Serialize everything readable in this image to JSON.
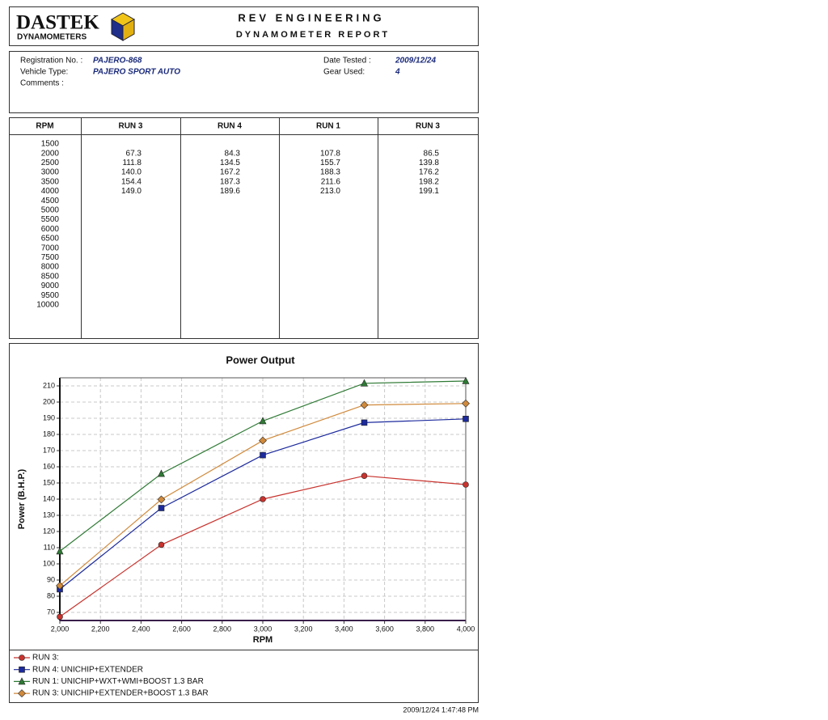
{
  "header": {
    "logo": "DASTEK",
    "logo_sub": "DYNAMOMETERS",
    "title": "REV ENGINEERING",
    "subtitle": "DYNAMOMETER REPORT"
  },
  "info": {
    "left": [
      {
        "label": "Registration No. :",
        "value": "PAJERO-868"
      },
      {
        "label": "Vehicle Type:",
        "value": "PAJERO SPORT AUTO"
      },
      {
        "label": "Comments :"
      }
    ],
    "right": [
      {
        "label": "Date Tested :",
        "value": "2009/12/24"
      },
      {
        "label": "Gear Used:",
        "value": "4"
      }
    ]
  },
  "table": {
    "columns": [
      "RPM",
      "RUN 3",
      "RUN 4",
      "RUN 1",
      "RUN 3"
    ],
    "rows": [
      [
        "1500"
      ],
      [
        "2000",
        "67.3",
        "84.3",
        "107.8",
        "86.5"
      ],
      [
        "2500",
        "111.8",
        "134.5",
        "155.7",
        "139.8"
      ],
      [
        "3000",
        "140.0",
        "167.2",
        "188.3",
        "176.2"
      ],
      [
        "3500",
        "154.4",
        "187.3",
        "211.6",
        "198.2"
      ],
      [
        "4000",
        "149.0",
        "189.6",
        "213.0",
        "199.1"
      ],
      [
        "4500"
      ],
      [
        "5000"
      ],
      [
        "5500"
      ],
      [
        "6000"
      ],
      [
        "6500"
      ],
      [
        "7000"
      ],
      [
        "7500"
      ],
      [
        "8000"
      ],
      [
        "8500"
      ],
      [
        "9000"
      ],
      [
        "9500"
      ],
      [
        "10000"
      ]
    ]
  },
  "chart_data": {
    "type": "line",
    "title": "Power Output",
    "x_label": "RPM",
    "y_label": "Power (B.H.P.)",
    "x": [
      2000,
      2500,
      3000,
      3500,
      4000
    ],
    "xlim": [
      2000,
      4000
    ],
    "xticks": [
      {
        "value": 2000,
        "label": "2,000"
      },
      {
        "value": 2200,
        "label": "2,200"
      },
      {
        "value": 2400,
        "label": "2,400"
      },
      {
        "value": 2600,
        "label": "2,600"
      },
      {
        "value": 2800,
        "label": "2,800"
      },
      {
        "value": 3000,
        "label": "3,000"
      },
      {
        "value": 3200,
        "label": "3,200"
      },
      {
        "value": 3400,
        "label": "3,400"
      },
      {
        "value": 3600,
        "label": "3,600"
      },
      {
        "value": 3800,
        "label": "3,800"
      },
      {
        "value": 4000,
        "label": "4,000"
      }
    ],
    "ylim": [
      65,
      215
    ],
    "yticks": [
      70,
      80,
      90,
      100,
      110,
      120,
      130,
      140,
      150,
      160,
      170,
      180,
      190,
      200,
      210
    ],
    "grid": true,
    "series": [
      {
        "name": "RUN 3:",
        "color": "#c8332e",
        "marker": "circle",
        "values": [
          67.3,
          111.8,
          140.0,
          154.4,
          149.0
        ]
      },
      {
        "name": "RUN 4: UNICHIP+EXTENDER",
        "color": "#1c2a9c",
        "marker": "square",
        "values": [
          84.3,
          134.5,
          167.2,
          187.3,
          189.6
        ]
      },
      {
        "name": "RUN 1: UNICHIP+WXT+WMI+BOOST 1.3 BAR",
        "color": "#2f7a35",
        "marker": "triangle",
        "values": [
          107.8,
          155.7,
          188.3,
          211.6,
          213.0
        ]
      },
      {
        "name": "RUN 3: UNICHIP+EXTENDER+BOOST 1.3 BAR",
        "color": "#d08a3c",
        "marker": "diamond",
        "values": [
          86.5,
          139.8,
          176.2,
          198.2,
          199.1
        ]
      }
    ]
  },
  "footer": {
    "timestamp": "2009/12/24 1:47:48 PM"
  }
}
